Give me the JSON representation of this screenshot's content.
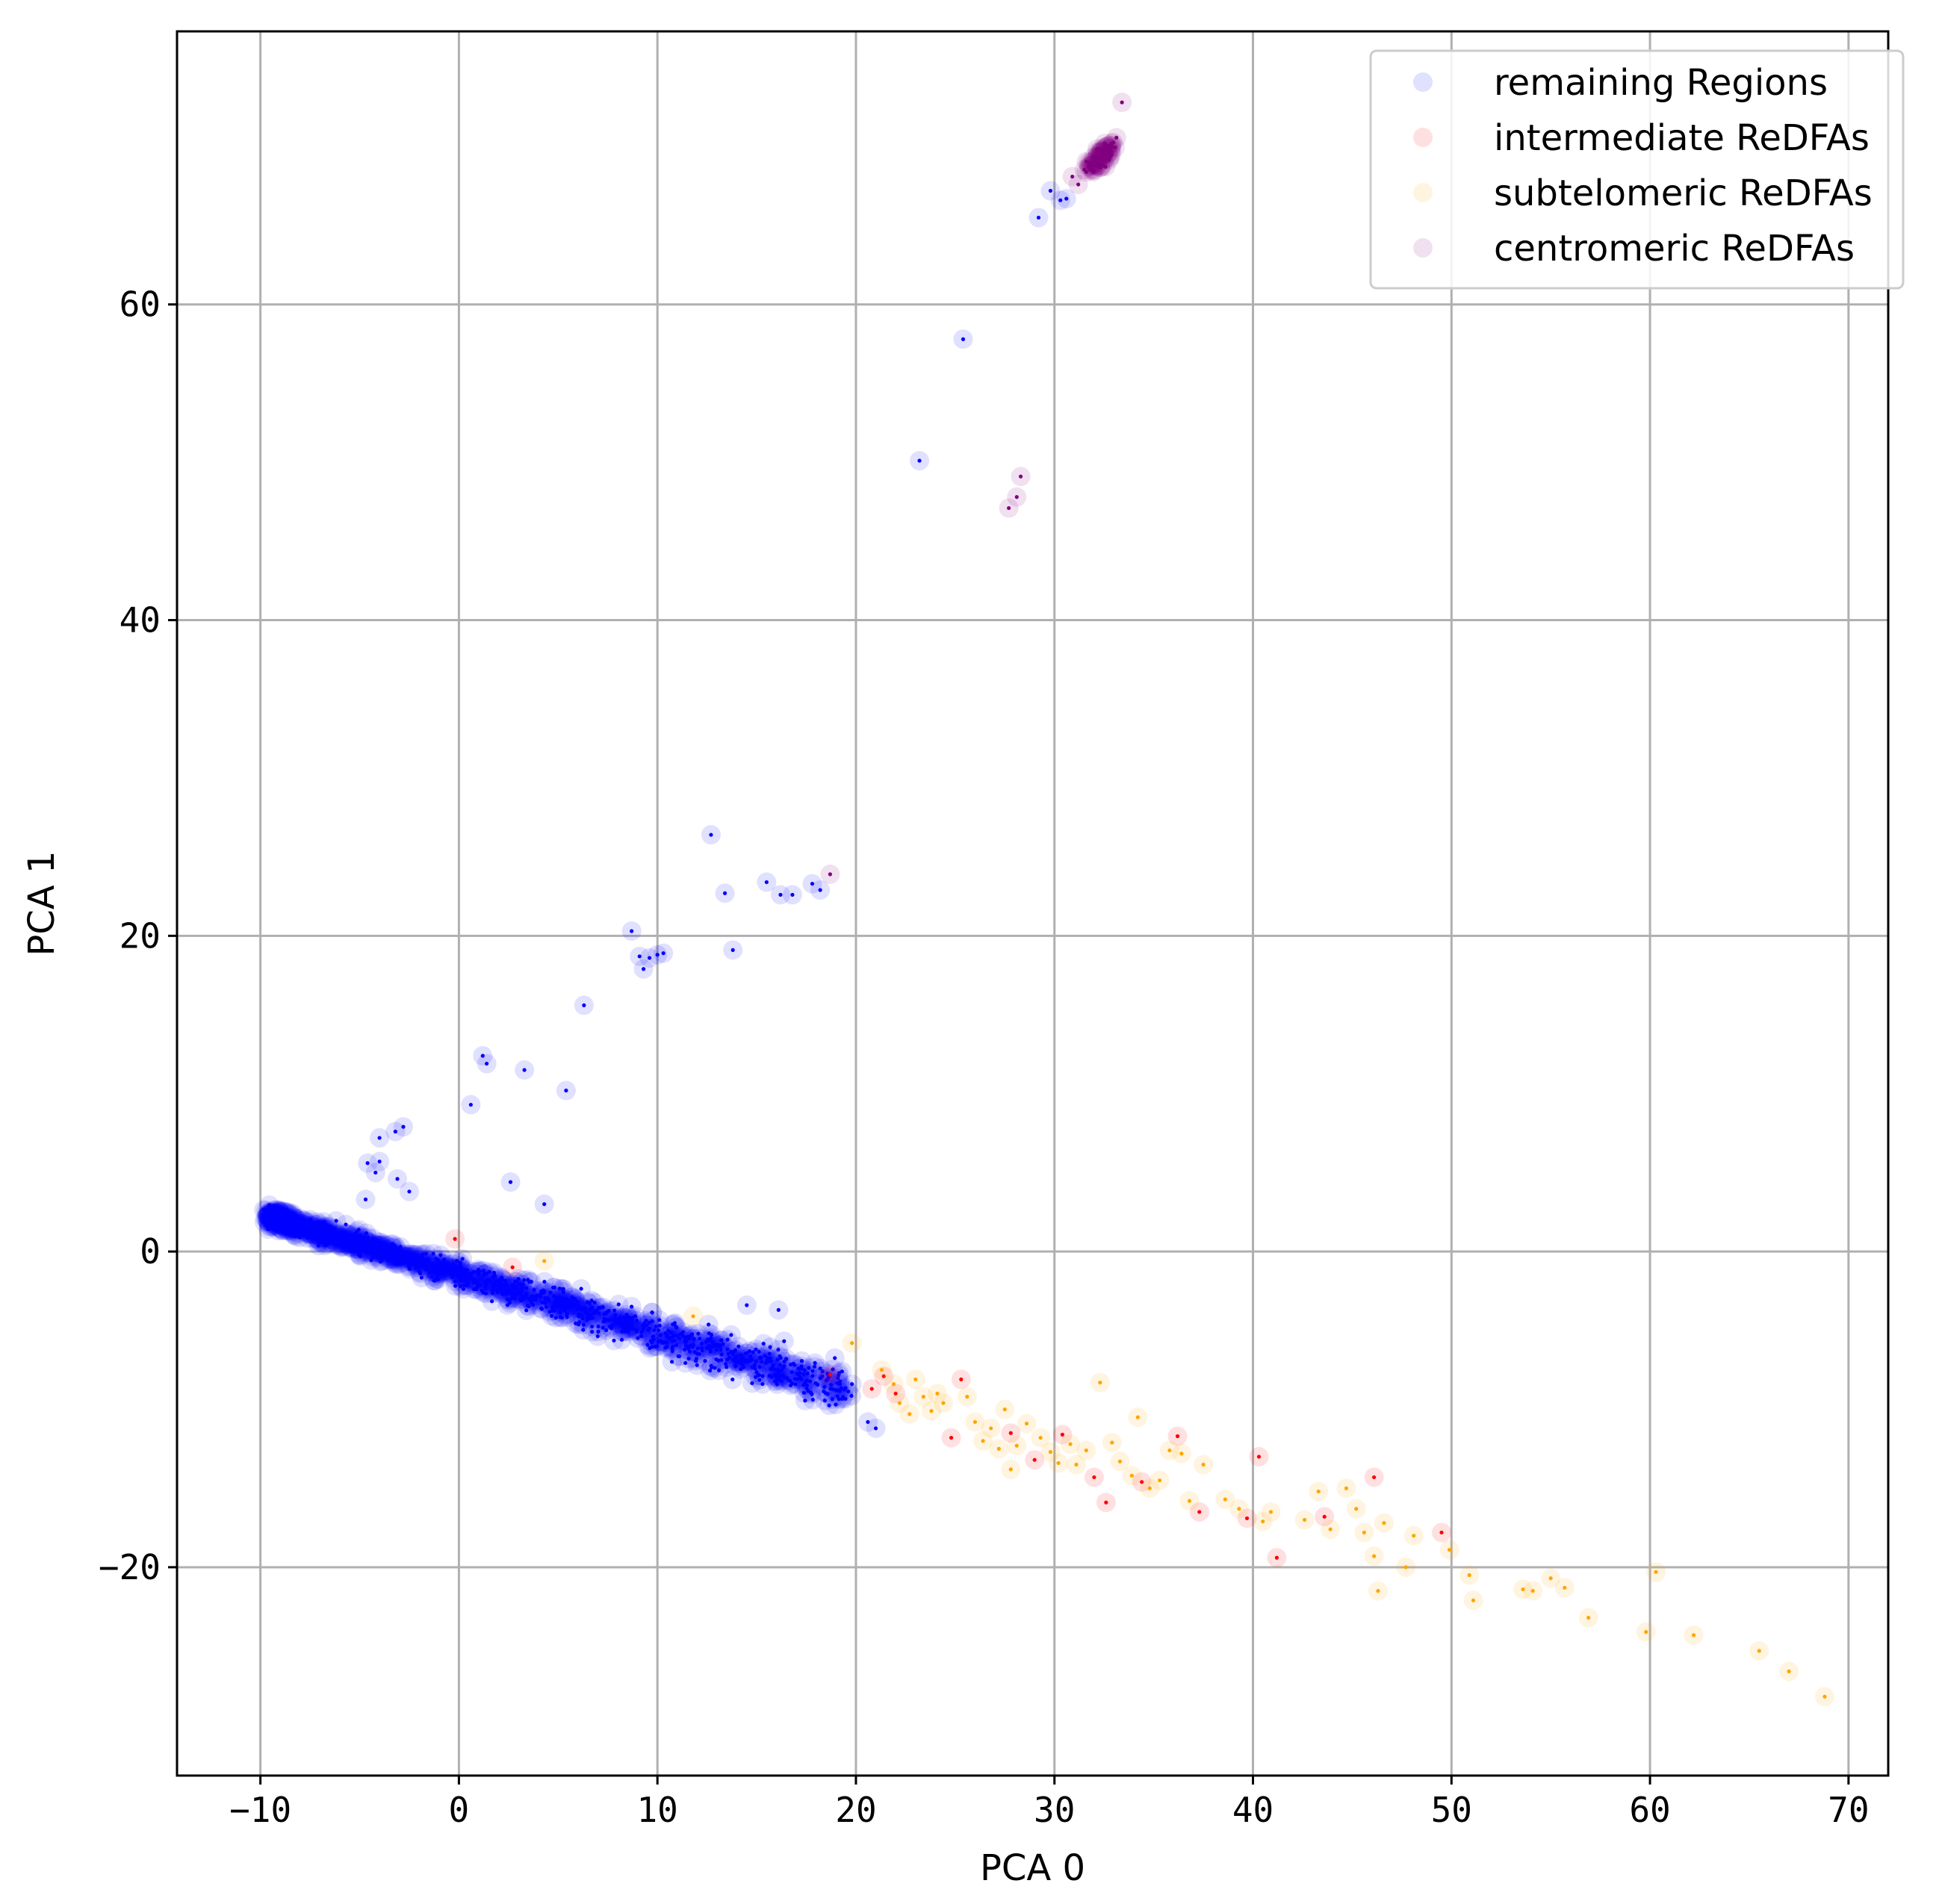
{
  "chart_data": {
    "type": "scatter",
    "xlabel": "PCA 0",
    "ylabel": "PCA 1",
    "xlim": [
      -14.2,
      72
    ],
    "ylim": [
      -33.2,
      77.3
    ],
    "xticks": [
      -10,
      0,
      10,
      20,
      30,
      40,
      50,
      60,
      70
    ],
    "yticks": [
      -20,
      0,
      20,
      40,
      60
    ],
    "xtick_labels": [
      "−10",
      "0",
      "10",
      "20",
      "30",
      "40",
      "50",
      "60",
      "70"
    ],
    "ytick_labels": [
      "−20",
      "0",
      "20",
      "40",
      "60"
    ],
    "grid": true,
    "legend_position": "top-right",
    "series": [
      {
        "name": "remaining Regions",
        "color": "#0000ff",
        "dense_band": {
          "x_start": -9.5,
          "x_end": 19.5,
          "y_at_start": 2.2,
          "y_at_end": -8.8,
          "count": 1400
        },
        "points": [
          [
            29.8,
            67.2
          ],
          [
            29.2,
            65.5
          ],
          [
            30.3,
            66.6
          ],
          [
            30.6,
            66.7
          ],
          [
            25.4,
            57.8
          ],
          [
            23.2,
            50.1
          ],
          [
            12.7,
            26.4
          ],
          [
            13.4,
            22.7
          ],
          [
            15.5,
            23.4
          ],
          [
            16.2,
            22.6
          ],
          [
            16.8,
            22.6
          ],
          [
            17.8,
            23.3
          ],
          [
            18.2,
            22.9
          ],
          [
            13.8,
            19.1
          ],
          [
            8.7,
            20.3
          ],
          [
            9.1,
            18.7
          ],
          [
            9.3,
            17.9
          ],
          [
            9.6,
            18.6
          ],
          [
            10.0,
            18.8
          ],
          [
            10.3,
            18.9
          ],
          [
            6.3,
            15.6
          ],
          [
            1.2,
            12.4
          ],
          [
            1.4,
            11.9
          ],
          [
            3.3,
            11.5
          ],
          [
            5.4,
            10.2
          ],
          [
            0.6,
            9.3
          ],
          [
            -2.8,
            7.9
          ],
          [
            -3.2,
            7.6
          ],
          [
            -4.0,
            7.2
          ],
          [
            -4.6,
            5.6
          ],
          [
            -4.0,
            5.7
          ],
          [
            -4.2,
            5.0
          ],
          [
            -3.1,
            4.6
          ],
          [
            -2.5,
            3.8
          ],
          [
            2.6,
            4.4
          ],
          [
            4.3,
            3.0
          ],
          [
            -4.7,
            3.3
          ],
          [
            14.5,
            -3.4
          ],
          [
            16.1,
            -3.7
          ],
          [
            19.3,
            -7.6
          ],
          [
            20.6,
            -10.8
          ],
          [
            21.0,
            -11.2
          ],
          [
            19.8,
            -8.4
          ]
        ]
      },
      {
        "name": "intermediate ReDFAs",
        "color": "#ff0000",
        "points": [
          [
            -0.2,
            0.8
          ],
          [
            2.7,
            -1.0
          ],
          [
            18.7,
            -7.8
          ],
          [
            20.8,
            -8.7
          ],
          [
            21.4,
            -7.9
          ],
          [
            24.8,
            -11.8
          ],
          [
            25.3,
            -8.1
          ],
          [
            27.8,
            -11.5
          ],
          [
            29.0,
            -13.2
          ],
          [
            30.4,
            -11.6
          ],
          [
            32.0,
            -14.3
          ],
          [
            32.6,
            -15.9
          ],
          [
            34.4,
            -14.6
          ],
          [
            36.2,
            -11.7
          ],
          [
            37.3,
            -16.5
          ],
          [
            39.7,
            -16.9
          ],
          [
            40.3,
            -13.0
          ],
          [
            41.2,
            -19.4
          ],
          [
            43.6,
            -16.8
          ],
          [
            46.1,
            -14.3
          ],
          [
            49.5,
            -17.8
          ],
          [
            22.0,
            -9.0
          ]
        ]
      },
      {
        "name": "subtelomeric ReDFAs",
        "color": "#ffa500",
        "points": [
          [
            19.8,
            -5.8
          ],
          [
            21.3,
            -7.5
          ],
          [
            21.9,
            -8.4
          ],
          [
            22.2,
            -9.6
          ],
          [
            22.7,
            -10.3
          ],
          [
            23.0,
            -8.1
          ],
          [
            23.4,
            -9.2
          ],
          [
            23.8,
            -10.1
          ],
          [
            24.4,
            -9.6
          ],
          [
            25.6,
            -9.2
          ],
          [
            26.0,
            -10.8
          ],
          [
            26.4,
            -12.0
          ],
          [
            26.8,
            -11.2
          ],
          [
            27.2,
            -12.5
          ],
          [
            27.5,
            -10.0
          ],
          [
            27.8,
            -13.8
          ],
          [
            28.1,
            -12.3
          ],
          [
            28.6,
            -10.9
          ],
          [
            29.3,
            -11.8
          ],
          [
            29.8,
            -12.7
          ],
          [
            30.2,
            -13.4
          ],
          [
            30.8,
            -12.2
          ],
          [
            31.1,
            -13.5
          ],
          [
            31.6,
            -12.6
          ],
          [
            32.3,
            -8.3
          ],
          [
            32.9,
            -12.1
          ],
          [
            33.3,
            -13.3
          ],
          [
            33.9,
            -14.2
          ],
          [
            34.2,
            -10.5
          ],
          [
            34.8,
            -15.0
          ],
          [
            35.3,
            -14.5
          ],
          [
            35.8,
            -12.6
          ],
          [
            36.4,
            -12.8
          ],
          [
            36.8,
            -15.8
          ],
          [
            37.5,
            -13.5
          ],
          [
            38.6,
            -15.7
          ],
          [
            39.3,
            -16.3
          ],
          [
            40.5,
            -17.1
          ],
          [
            40.9,
            -16.5
          ],
          [
            42.6,
            -17.0
          ],
          [
            43.3,
            -15.2
          ],
          [
            43.9,
            -17.6
          ],
          [
            44.7,
            -15.0
          ],
          [
            45.2,
            -16.3
          ],
          [
            45.6,
            -17.8
          ],
          [
            46.1,
            -19.3
          ],
          [
            46.3,
            -21.5
          ],
          [
            46.6,
            -17.2
          ],
          [
            47.7,
            -20.0
          ],
          [
            48.1,
            -18.0
          ],
          [
            49.9,
            -18.9
          ],
          [
            50.9,
            -20.5
          ],
          [
            51.1,
            -22.1
          ],
          [
            53.6,
            -21.4
          ],
          [
            54.1,
            -21.5
          ],
          [
            55.0,
            -20.7
          ],
          [
            55.7,
            -21.3
          ],
          [
            56.9,
            -23.2
          ],
          [
            59.8,
            -24.1
          ],
          [
            60.3,
            -20.3
          ],
          [
            62.2,
            -24.3
          ],
          [
            65.5,
            -25.3
          ],
          [
            67.0,
            -26.6
          ],
          [
            68.8,
            -28.2
          ],
          [
            4.3,
            -0.6
          ],
          [
            11.8,
            -4.1
          ],
          [
            24.1,
            -9.0
          ]
        ]
      },
      {
        "name": "centromeric ReDFAs",
        "color": "#800080",
        "cluster": {
          "cx": 32.3,
          "cy": 69.3,
          "sx": 0.6,
          "sy": 0.9,
          "count": 75
        },
        "points": [
          [
            33.4,
            72.8
          ],
          [
            31.2,
            67.6
          ],
          [
            30.9,
            68.1
          ],
          [
            28.3,
            49.1
          ],
          [
            28.1,
            47.8
          ],
          [
            27.7,
            47.1
          ],
          [
            18.7,
            23.9
          ]
        ]
      }
    ]
  }
}
